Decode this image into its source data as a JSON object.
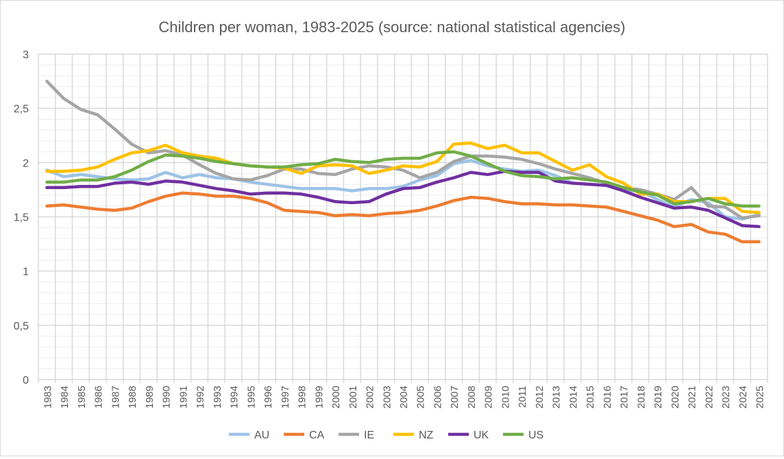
{
  "chart_data": {
    "type": "line",
    "title": "Children per woman, 1983-2025 (source: national statistical agencies)",
    "xlabel": "",
    "ylabel": "",
    "ylim": [
      0,
      3
    ],
    "yticks": [
      "0",
      "0,5",
      "1",
      "1,5",
      "2",
      "2,5",
      "3"
    ],
    "grid": true,
    "legend": "bottom",
    "x": [
      1983,
      1984,
      1985,
      1986,
      1987,
      1988,
      1989,
      1990,
      1991,
      1992,
      1993,
      1994,
      1995,
      1996,
      1997,
      1998,
      1999,
      2000,
      2001,
      2002,
      2003,
      2004,
      2005,
      2006,
      2007,
      2008,
      2009,
      2010,
      2011,
      2012,
      2013,
      2014,
      2015,
      2016,
      2017,
      2018,
      2019,
      2020,
      2021,
      2022,
      2023,
      2024,
      2025
    ],
    "series": [
      {
        "name": "AU",
        "color": "#9dc3e6",
        "values": [
          1.93,
          1.87,
          1.89,
          1.87,
          1.85,
          1.84,
          1.85,
          1.91,
          1.86,
          1.89,
          1.86,
          1.85,
          1.82,
          1.8,
          1.78,
          1.76,
          1.76,
          1.76,
          1.74,
          1.76,
          1.76,
          1.78,
          1.84,
          1.88,
          1.99,
          2.02,
          1.97,
          1.94,
          1.92,
          1.93,
          1.88,
          1.81,
          1.8,
          1.79,
          1.74,
          1.74,
          1.66,
          1.59,
          1.66,
          1.63,
          1.5,
          1.48,
          1.52
        ]
      },
      {
        "name": "CA",
        "color": "#ed7d31",
        "values": [
          1.6,
          1.61,
          1.59,
          1.57,
          1.56,
          1.58,
          1.64,
          1.69,
          1.72,
          1.71,
          1.69,
          1.69,
          1.67,
          1.63,
          1.56,
          1.55,
          1.54,
          1.51,
          1.52,
          1.51,
          1.53,
          1.54,
          1.56,
          1.6,
          1.65,
          1.68,
          1.67,
          1.64,
          1.62,
          1.62,
          1.61,
          1.61,
          1.6,
          1.59,
          1.55,
          1.51,
          1.47,
          1.41,
          1.43,
          1.36,
          1.34,
          1.27,
          1.27
        ]
      },
      {
        "name": "IE",
        "color": "#a5a5a5",
        "values": [
          2.75,
          2.59,
          2.49,
          2.44,
          2.31,
          2.17,
          2.09,
          2.11,
          2.07,
          1.98,
          1.9,
          1.85,
          1.84,
          1.88,
          1.94,
          1.94,
          1.9,
          1.89,
          1.94,
          1.97,
          1.96,
          1.93,
          1.86,
          1.91,
          2.01,
          2.06,
          2.06,
          2.05,
          2.03,
          1.99,
          1.94,
          1.9,
          1.86,
          1.81,
          1.77,
          1.75,
          1.71,
          1.66,
          1.77,
          1.6,
          1.59,
          1.49,
          1.51
        ]
      },
      {
        "name": "NZ",
        "color": "#ffc000",
        "values": [
          1.92,
          1.92,
          1.93,
          1.96,
          2.03,
          2.09,
          2.11,
          2.16,
          2.09,
          2.06,
          2.04,
          1.99,
          1.97,
          1.96,
          1.95,
          1.9,
          1.97,
          1.98,
          1.97,
          1.9,
          1.93,
          1.97,
          1.96,
          2.01,
          2.17,
          2.18,
          2.13,
          2.16,
          2.09,
          2.09,
          2.01,
          1.93,
          1.98,
          1.87,
          1.81,
          1.71,
          1.71,
          1.64,
          1.64,
          1.67,
          1.67,
          1.55,
          1.54
        ]
      },
      {
        "name": "UK",
        "color": "#7030a0",
        "values": [
          1.77,
          1.77,
          1.78,
          1.78,
          1.81,
          1.82,
          1.8,
          1.83,
          1.82,
          1.79,
          1.76,
          1.74,
          1.71,
          1.72,
          1.72,
          1.71,
          1.68,
          1.64,
          1.63,
          1.64,
          1.71,
          1.76,
          1.77,
          1.82,
          1.86,
          1.91,
          1.89,
          1.92,
          1.91,
          1.91,
          1.83,
          1.81,
          1.8,
          1.79,
          1.74,
          1.68,
          1.63,
          1.58,
          1.59,
          1.56,
          1.49,
          1.42,
          1.41
        ]
      },
      {
        "name": "US",
        "color": "#70ad47",
        "values": [
          1.82,
          1.82,
          1.84,
          1.84,
          1.87,
          1.93,
          2.01,
          2.07,
          2.06,
          2.04,
          2.01,
          1.99,
          1.97,
          1.96,
          1.96,
          1.98,
          1.99,
          2.03,
          2.01,
          2.0,
          2.03,
          2.04,
          2.04,
          2.09,
          2.1,
          2.06,
          1.99,
          1.92,
          1.88,
          1.87,
          1.85,
          1.86,
          1.84,
          1.82,
          1.77,
          1.73,
          1.7,
          1.62,
          1.64,
          1.67,
          1.62,
          1.6,
          1.6
        ]
      }
    ]
  }
}
